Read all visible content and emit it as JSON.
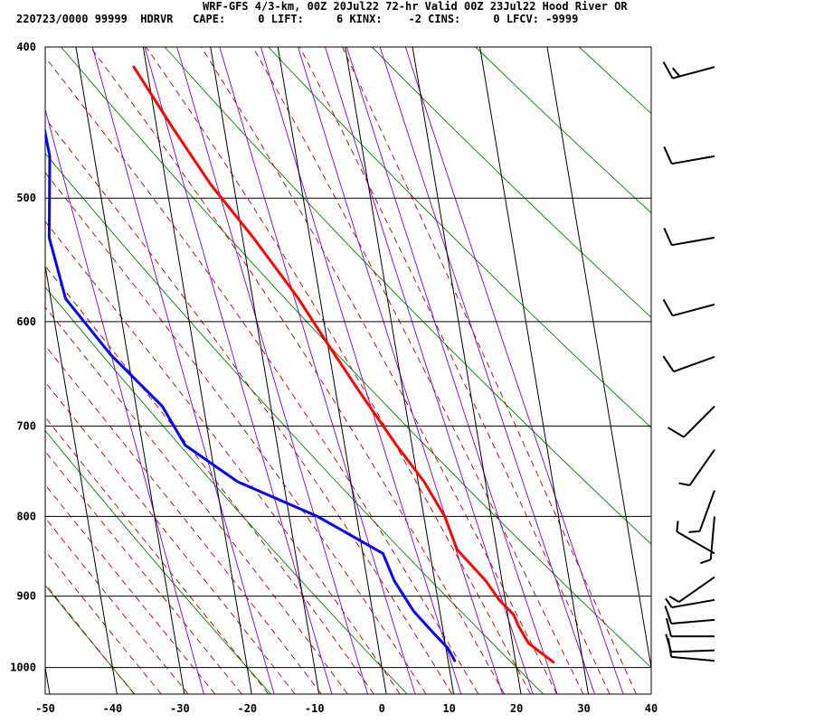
{
  "header": {
    "title": "WRF-GFS 4/3-km, 00Z 20Jul22 72-hr Valid 00Z 23Jul22 Hood River OR",
    "info": "220723/0000 99999  HDRVR   CAPE:     0 LIFT:     6 KINX:    -2 CINS:     0 LFCV: -9999"
  },
  "chart_data": {
    "type": "line",
    "title": "",
    "xlabel": "",
    "ylabel": "",
    "x_ticks": [
      -50,
      -40,
      -30,
      -20,
      -10,
      0,
      10,
      20,
      30,
      40
    ],
    "y_ticks": [
      400,
      500,
      600,
      700,
      800,
      900,
      1000
    ],
    "xlim": [
      -50,
      40
    ],
    "ylim": [
      1040,
      400
    ],
    "y_scale": "log",
    "grid": true,
    "skew": true,
    "series": [
      {
        "name": "",
        "kind": "temperature",
        "color": "#ff0000",
        "points": [
          [
            -21.9,
            412
          ],
          [
            -17.7,
            450
          ],
          [
            -13.4,
            490
          ],
          [
            -8.4,
            530
          ],
          [
            -3.2,
            580
          ],
          [
            0.0,
            620
          ],
          [
            3.5,
            665
          ],
          [
            7.7,
            720
          ],
          [
            10.9,
            760
          ],
          [
            13.1,
            800
          ],
          [
            14.1,
            840
          ],
          [
            17.6,
            880
          ],
          [
            19.1,
            905
          ],
          [
            20.9,
            925
          ],
          [
            21.3,
            940
          ],
          [
            22.4,
            965
          ],
          [
            25.6,
            992
          ]
        ]
      },
      {
        "name": "",
        "kind": "dewpoint",
        "color": "#0000ff",
        "points": [
          [
            -37.0,
            412
          ],
          [
            -36.6,
            470
          ],
          [
            -38.7,
            530
          ],
          [
            -37.8,
            580
          ],
          [
            -32.5,
            630
          ],
          [
            -26.1,
            680
          ],
          [
            -23.7,
            720
          ],
          [
            -16.8,
            760
          ],
          [
            -5.8,
            800
          ],
          [
            3.0,
            845
          ],
          [
            4.0,
            880
          ],
          [
            6.1,
            920
          ],
          [
            8.5,
            950
          ],
          [
            10.3,
            972
          ],
          [
            11.0,
            990
          ]
        ]
      }
    ],
    "wind_barbs": [
      {
        "p": 412,
        "dir": 255,
        "kt": 15
      },
      {
        "p": 470,
        "dir": 260,
        "kt": 10
      },
      {
        "p": 530,
        "dir": 260,
        "kt": 10
      },
      {
        "p": 585,
        "dir": 255,
        "kt": 10
      },
      {
        "p": 632,
        "dir": 250,
        "kt": 10
      },
      {
        "p": 680,
        "dir": 225,
        "kt": 10
      },
      {
        "p": 725,
        "dir": 215,
        "kt": 5
      },
      {
        "p": 770,
        "dir": 200,
        "kt": 5
      },
      {
        "p": 800,
        "dir": 185,
        "kt": 5
      },
      {
        "p": 845,
        "dir": 300,
        "kt": 5
      },
      {
        "p": 875,
        "dir": 235,
        "kt": 5
      },
      {
        "p": 905,
        "dir": 260,
        "kt": 5
      },
      {
        "p": 932,
        "dir": 265,
        "kt": 10
      },
      {
        "p": 955,
        "dir": 270,
        "kt": 10
      },
      {
        "p": 975,
        "dir": 268,
        "kt": 10
      },
      {
        "p": 990,
        "dir": 275,
        "kt": 10
      }
    ]
  },
  "colors": {
    "temperature": "#ff0000",
    "dewpoint": "#0000ff",
    "dry_adiabat": "#008000",
    "moist_adiabat": "#aa0000",
    "mixing_ratio": "#8000c0",
    "grid": "#000000"
  }
}
